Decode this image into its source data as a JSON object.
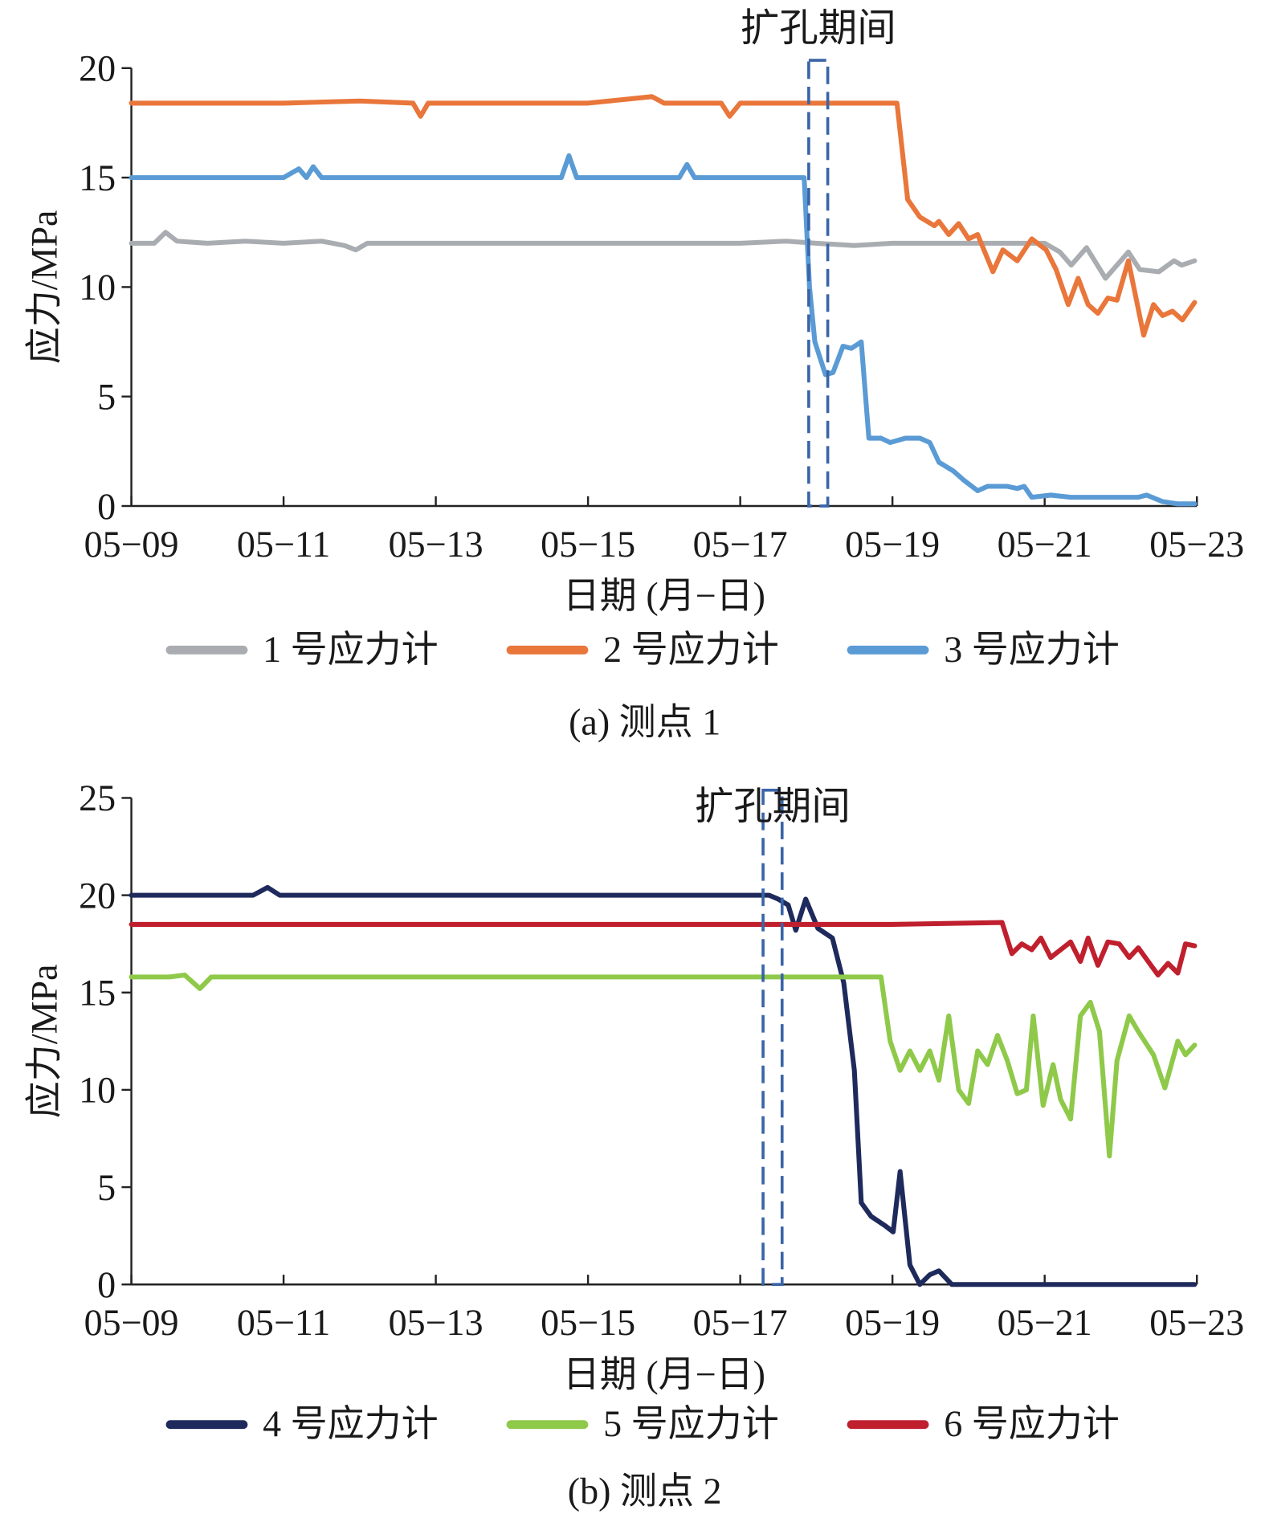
{
  "chart_data": [
    {
      "type": "line",
      "title": "扩孔期间",
      "caption": "(a) 测点 1",
      "xlabel": "日期 (月−日)",
      "ylabel": "应力/MPa",
      "x_tick_labels": [
        "05−09",
        "05−11",
        "05−13",
        "05−15",
        "05−17",
        "05−19",
        "05−21",
        "05−23"
      ],
      "x_unit": "days since 05-09",
      "xlim": [
        0,
        14
      ],
      "ylim": [
        0,
        20
      ],
      "y_ticks": [
        0,
        5,
        10,
        15,
        20
      ],
      "highlight_period_days": [
        8.9,
        9.15
      ],
      "legend_position": "bottom",
      "series": [
        {
          "name": "1 号应力计",
          "color": "#a9adb1",
          "points": [
            [
              0,
              12
            ],
            [
              0.3,
              12
            ],
            [
              0.45,
              12.5
            ],
            [
              0.6,
              12.1
            ],
            [
              1,
              12
            ],
            [
              1.5,
              12.1
            ],
            [
              2,
              12
            ],
            [
              2.5,
              12.1
            ],
            [
              2.8,
              11.9
            ],
            [
              2.95,
              11.7
            ],
            [
              3.1,
              12
            ],
            [
              4,
              12
            ],
            [
              5,
              12
            ],
            [
              6,
              12
            ],
            [
              7,
              12
            ],
            [
              8,
              12
            ],
            [
              8.6,
              12.1
            ],
            [
              9,
              12
            ],
            [
              9.5,
              11.9
            ],
            [
              10,
              12
            ],
            [
              10.5,
              12
            ],
            [
              11,
              12
            ],
            [
              11.5,
              12
            ],
            [
              12,
              12
            ],
            [
              12.2,
              11.6
            ],
            [
              12.35,
              11
            ],
            [
              12.55,
              11.8
            ],
            [
              12.8,
              10.4
            ],
            [
              13.1,
              11.6
            ],
            [
              13.25,
              10.8
            ],
            [
              13.5,
              10.7
            ],
            [
              13.7,
              11.2
            ],
            [
              13.8,
              11
            ],
            [
              13.97,
              11.2
            ]
          ]
        },
        {
          "name": "2 号应力计",
          "color": "#e9763a",
          "points": [
            [
              0,
              18.4
            ],
            [
              1,
              18.4
            ],
            [
              2,
              18.4
            ],
            [
              3,
              18.5
            ],
            [
              3.7,
              18.4
            ],
            [
              3.8,
              17.8
            ],
            [
              3.9,
              18.4
            ],
            [
              5,
              18.4
            ],
            [
              6,
              18.4
            ],
            [
              6.84,
              18.7
            ],
            [
              7,
              18.4
            ],
            [
              7.75,
              18.4
            ],
            [
              7.86,
              17.8
            ],
            [
              8,
              18.4
            ],
            [
              9,
              18.4
            ],
            [
              10.06,
              18.4
            ],
            [
              10.2,
              14
            ],
            [
              10.36,
              13.2
            ],
            [
              10.55,
              12.8
            ],
            [
              10.61,
              13
            ],
            [
              10.74,
              12.4
            ],
            [
              10.87,
              12.9
            ],
            [
              11,
              12.2
            ],
            [
              11.12,
              12.4
            ],
            [
              11.32,
              10.7
            ],
            [
              11.45,
              11.7
            ],
            [
              11.64,
              11.2
            ],
            [
              11.83,
              12.2
            ],
            [
              12.02,
              11.7
            ],
            [
              12.15,
              10.8
            ],
            [
              12.31,
              9.2
            ],
            [
              12.44,
              10.4
            ],
            [
              12.57,
              9.2
            ],
            [
              12.7,
              8.8
            ],
            [
              12.83,
              9.5
            ],
            [
              12.95,
              9.4
            ],
            [
              13.1,
              11.2
            ],
            [
              13.3,
              7.8
            ],
            [
              13.43,
              9.2
            ],
            [
              13.55,
              8.7
            ],
            [
              13.68,
              8.9
            ],
            [
              13.81,
              8.5
            ],
            [
              13.97,
              9.3
            ]
          ]
        },
        {
          "name": "3 号应力计",
          "color": "#5b9bd5",
          "points": [
            [
              0,
              15
            ],
            [
              1,
              15
            ],
            [
              2,
              15
            ],
            [
              2.2,
              15.4
            ],
            [
              2.3,
              15
            ],
            [
              2.39,
              15.5
            ],
            [
              2.5,
              15
            ],
            [
              4,
              15
            ],
            [
              5.65,
              15
            ],
            [
              5.75,
              16
            ],
            [
              5.85,
              15
            ],
            [
              7,
              15
            ],
            [
              7.2,
              15
            ],
            [
              7.3,
              15.6
            ],
            [
              7.4,
              15
            ],
            [
              8,
              15
            ],
            [
              8.84,
              15
            ],
            [
              8.91,
              10
            ],
            [
              8.98,
              7.5
            ],
            [
              9.12,
              6
            ],
            [
              9.22,
              6.1
            ],
            [
              9.35,
              7.3
            ],
            [
              9.46,
              7.2
            ],
            [
              9.59,
              7.5
            ],
            [
              9.69,
              3.1
            ],
            [
              9.85,
              3.1
            ],
            [
              9.97,
              2.9
            ],
            [
              10.17,
              3.1
            ],
            [
              10.36,
              3.1
            ],
            [
              10.49,
              2.9
            ],
            [
              10.61,
              2
            ],
            [
              10.8,
              1.6
            ],
            [
              10.93,
              1.2
            ],
            [
              11.12,
              0.7
            ],
            [
              11.25,
              0.9
            ],
            [
              11.51,
              0.9
            ],
            [
              11.64,
              0.8
            ],
            [
              11.73,
              0.9
            ],
            [
              11.83,
              0.4
            ],
            [
              12.08,
              0.5
            ],
            [
              12.34,
              0.4
            ],
            [
              13.23,
              0.4
            ],
            [
              13.34,
              0.5
            ],
            [
              13.55,
              0.2
            ],
            [
              13.75,
              0.1
            ],
            [
              13.97,
              0.1
            ]
          ]
        }
      ]
    },
    {
      "type": "line",
      "title": "扩孔期间",
      "caption": "(b) 测点 2",
      "xlabel": "日期 (月−日)",
      "ylabel": "应力/MPa",
      "x_tick_labels": [
        "05−09",
        "05−11",
        "05−13",
        "05−15",
        "05−17",
        "05−19",
        "05−21",
        "05−23"
      ],
      "x_unit": "days since 05-09",
      "xlim": [
        0,
        14
      ],
      "ylim": [
        0,
        25
      ],
      "y_ticks": [
        0,
        5,
        10,
        15,
        20,
        25
      ],
      "highlight_period_days": [
        8.3,
        8.55
      ],
      "legend_position": "bottom",
      "series": [
        {
          "name": "4 号应力计",
          "color": "#1f2a5c",
          "points": [
            [
              0,
              20
            ],
            [
              1.6,
              20
            ],
            [
              1.79,
              20.4
            ],
            [
              1.95,
              20
            ],
            [
              3,
              20
            ],
            [
              4,
              20
            ],
            [
              5,
              20
            ],
            [
              6,
              20
            ],
            [
              7,
              20
            ],
            [
              8.38,
              20
            ],
            [
              8.5,
              19.8
            ],
            [
              8.63,
              19.5
            ],
            [
              8.73,
              18.2
            ],
            [
              8.86,
              19.8
            ],
            [
              9.02,
              18.3
            ],
            [
              9.21,
              17.8
            ],
            [
              9.36,
              15.5
            ],
            [
              9.5,
              11
            ],
            [
              9.59,
              4.2
            ],
            [
              9.72,
              3.5
            ],
            [
              9.91,
              3
            ],
            [
              10.01,
              2.7
            ],
            [
              10.1,
              5.8
            ],
            [
              10.23,
              1
            ],
            [
              10.36,
              0
            ],
            [
              10.49,
              0.5
            ],
            [
              10.61,
              0.7
            ],
            [
              10.78,
              0
            ],
            [
              13.97,
              0
            ]
          ]
        },
        {
          "name": "5 号应力计",
          "color": "#8fc94a",
          "points": [
            [
              0,
              15.8
            ],
            [
              0.5,
              15.8
            ],
            [
              0.7,
              15.9
            ],
            [
              0.9,
              15.2
            ],
            [
              1.05,
              15.8
            ],
            [
              2,
              15.8
            ],
            [
              3,
              15.8
            ],
            [
              4,
              15.8
            ],
            [
              5,
              15.8
            ],
            [
              6,
              15.8
            ],
            [
              7,
              15.8
            ],
            [
              8,
              15.8
            ],
            [
              9,
              15.8
            ],
            [
              9.85,
              15.8
            ],
            [
              9.97,
              12.5
            ],
            [
              10.1,
              11
            ],
            [
              10.23,
              12
            ],
            [
              10.36,
              11
            ],
            [
              10.49,
              12
            ],
            [
              10.61,
              10.5
            ],
            [
              10.74,
              13.8
            ],
            [
              10.87,
              10
            ],
            [
              11,
              9.3
            ],
            [
              11.12,
              12
            ],
            [
              11.25,
              11.3
            ],
            [
              11.38,
              12.8
            ],
            [
              11.51,
              11.5
            ],
            [
              11.64,
              9.8
            ],
            [
              11.76,
              10
            ],
            [
              11.85,
              13.8
            ],
            [
              11.98,
              9.2
            ],
            [
              12.11,
              11.3
            ],
            [
              12.21,
              9.5
            ],
            [
              12.34,
              8.5
            ],
            [
              12.47,
              13.8
            ],
            [
              12.6,
              14.5
            ],
            [
              12.72,
              13
            ],
            [
              12.85,
              6.6
            ],
            [
              12.95,
              11.5
            ],
            [
              13.11,
              13.8
            ],
            [
              13.23,
              13
            ],
            [
              13.43,
              11.8
            ],
            [
              13.58,
              10.1
            ],
            [
              13.75,
              12.5
            ],
            [
              13.85,
              11.8
            ],
            [
              13.97,
              12.3
            ]
          ]
        },
        {
          "name": "6 号应力计",
          "color": "#c0202e",
          "points": [
            [
              0,
              18.5
            ],
            [
              2,
              18.5
            ],
            [
              4,
              18.5
            ],
            [
              6,
              18.5
            ],
            [
              8,
              18.5
            ],
            [
              10,
              18.5
            ],
            [
              11.44,
              18.6
            ],
            [
              11.57,
              17
            ],
            [
              11.7,
              17.5
            ],
            [
              11.83,
              17.2
            ],
            [
              11.95,
              17.8
            ],
            [
              12.08,
              16.8
            ],
            [
              12.21,
              17.2
            ],
            [
              12.34,
              17.6
            ],
            [
              12.47,
              16.6
            ],
            [
              12.57,
              17.8
            ],
            [
              12.7,
              16.4
            ],
            [
              12.83,
              17.6
            ],
            [
              12.98,
              17.5
            ],
            [
              13.11,
              16.8
            ],
            [
              13.23,
              17.3
            ],
            [
              13.36,
              16.6
            ],
            [
              13.49,
              15.9
            ],
            [
              13.62,
              16.5
            ],
            [
              13.75,
              16
            ],
            [
              13.85,
              17.5
            ],
            [
              13.97,
              17.4
            ]
          ]
        }
      ]
    }
  ]
}
